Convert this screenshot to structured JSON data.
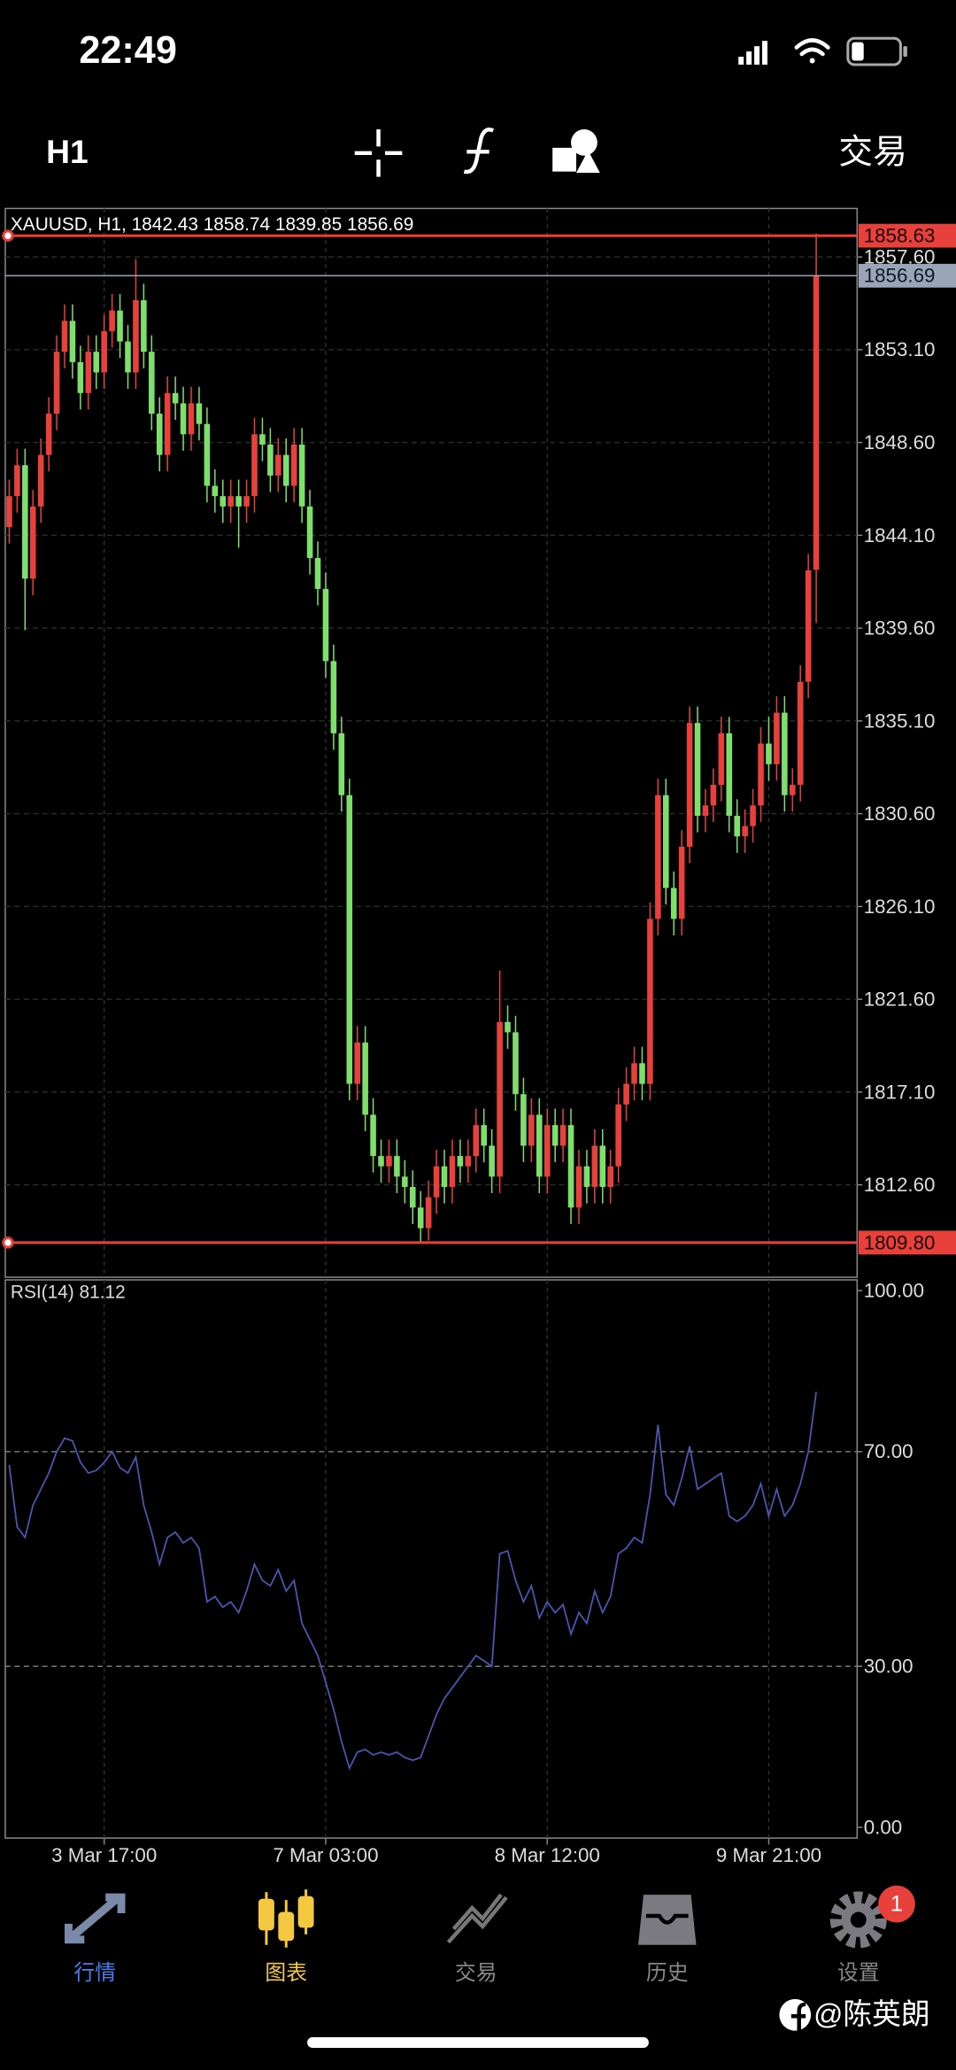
{
  "status_bar": {
    "time": "22:49"
  },
  "toolbar": {
    "timeframe": "H1",
    "trade": "交易"
  },
  "chart_data": [
    {
      "type": "candlestick",
      "title": "XAUUSD, H1, 1842.43 1858.74 1839.85 1856.69",
      "categories": [
        null,
        null,
        null,
        null,
        null,
        null,
        null,
        null,
        null,
        null,
        null,
        null,
        "3 Mar 17:00",
        null,
        null,
        null,
        null,
        null,
        null,
        null,
        null,
        null,
        null,
        null,
        null,
        null,
        null,
        null,
        null,
        null,
        null,
        null,
        null,
        null,
        null,
        null,
        null,
        null,
        null,
        null,
        "7 Mar 03:00",
        null,
        null,
        null,
        null,
        null,
        null,
        null,
        null,
        null,
        null,
        null,
        null,
        null,
        null,
        null,
        null,
        null,
        null,
        null,
        null,
        null,
        null,
        null,
        null,
        null,
        null,
        null,
        "8 Mar 12:00",
        null,
        null,
        null,
        null,
        null,
        null,
        null,
        null,
        null,
        null,
        null,
        null,
        null,
        null,
        null,
        null,
        null,
        null,
        null,
        null,
        null,
        null,
        null,
        null,
        null,
        null,
        null,
        "9 Mar 21:00",
        null,
        null,
        null,
        null,
        null,
        null
      ],
      "open": [
        1844.5,
        1846.0,
        1847.5,
        1842.0,
        1845.5,
        1848.0,
        1850.0,
        1853.0,
        1854.5,
        1852.5,
        1851.0,
        1853.0,
        1852.0,
        1854.0,
        1855.0,
        1853.5,
        1852.0,
        1855.5,
        1853.0,
        1850.0,
        1848.0,
        1851.0,
        1850.5,
        1849.0,
        1850.5,
        1849.5,
        1846.5,
        1846.0,
        1845.5,
        1846.0,
        1845.5,
        1846.0,
        1849.0,
        1848.5,
        1847.0,
        1848.0,
        1846.5,
        1848.5,
        1845.5,
        1843.0,
        1841.5,
        1838.0,
        1834.5,
        1831.5,
        1817.5,
        1819.5,
        1816.0,
        1814.0,
        1813.5,
        1814.0,
        1813.0,
        1812.5,
        1811.5,
        1810.5,
        1812.0,
        1813.5,
        1812.5,
        1814.0,
        1813.5,
        1814.0,
        1815.5,
        1814.5,
        1813.0,
        1820.5,
        1820.0,
        1817.0,
        1814.5,
        1816.0,
        1813.0,
        1815.5,
        1814.5,
        1815.5,
        1811.5,
        1813.5,
        1812.5,
        1814.5,
        1812.5,
        1813.5,
        1816.5,
        1817.5,
        1818.5,
        1817.5,
        1825.5,
        1831.5,
        1827.0,
        1825.5,
        1829.0,
        1835.0,
        1830.5,
        1831.0,
        1832.0,
        1834.5,
        1830.5,
        1829.5,
        1830.0,
        1831.0,
        1834.0,
        1833.0,
        1835.5,
        1831.5,
        1832.0,
        1837.0,
        1842.43
      ],
      "high": [
        1846.8,
        1848.3,
        1848.3,
        1846.3,
        1848.8,
        1850.8,
        1853.8,
        1855.3,
        1855.3,
        1853.3,
        1853.8,
        1853.8,
        1854.8,
        1855.8,
        1855.8,
        1854.3,
        1857.5,
        1856.3,
        1853.8,
        1850.8,
        1851.8,
        1851.8,
        1851.3,
        1851.3,
        1851.3,
        1850.3,
        1847.3,
        1846.8,
        1846.8,
        1846.8,
        1846.8,
        1849.8,
        1849.8,
        1849.3,
        1848.8,
        1848.8,
        1849.3,
        1849.3,
        1846.3,
        1843.8,
        1842.3,
        1838.8,
        1835.3,
        1832.3,
        1820.3,
        1820.3,
        1816.8,
        1814.8,
        1814.8,
        1814.8,
        1813.8,
        1813.3,
        1812.3,
        1812.8,
        1814.3,
        1814.3,
        1814.8,
        1814.8,
        1814.8,
        1816.3,
        1816.3,
        1815.3,
        1823.0,
        1821.3,
        1820.8,
        1817.8,
        1816.8,
        1816.8,
        1816.3,
        1816.3,
        1816.3,
        1816.3,
        1814.3,
        1814.3,
        1815.3,
        1815.3,
        1814.3,
        1817.3,
        1818.3,
        1819.3,
        1819.3,
        1826.3,
        1832.3,
        1832.3,
        1827.8,
        1829.8,
        1835.8,
        1835.8,
        1831.8,
        1832.8,
        1835.3,
        1835.3,
        1831.3,
        1830.8,
        1831.8,
        1834.8,
        1835.3,
        1836.3,
        1836.3,
        1832.8,
        1837.8,
        1843.2,
        1858.74
      ],
      "low": [
        1843.7,
        1845.2,
        1839.5,
        1841.2,
        1844.7,
        1847.2,
        1849.2,
        1852.2,
        1851.7,
        1850.2,
        1850.2,
        1851.2,
        1851.2,
        1853.2,
        1852.7,
        1851.2,
        1851.2,
        1852.2,
        1849.2,
        1847.2,
        1847.2,
        1849.7,
        1848.2,
        1848.2,
        1848.7,
        1845.7,
        1845.2,
        1844.7,
        1844.7,
        1843.5,
        1844.7,
        1845.2,
        1847.7,
        1846.2,
        1846.2,
        1845.7,
        1845.7,
        1844.7,
        1842.2,
        1840.7,
        1837.2,
        1833.7,
        1830.7,
        1816.7,
        1816.7,
        1815.2,
        1813.2,
        1812.7,
        1812.7,
        1812.2,
        1811.7,
        1810.7,
        1809.8,
        1809.9,
        1811.2,
        1811.7,
        1811.7,
        1812.7,
        1812.7,
        1813.2,
        1813.7,
        1812.2,
        1812.2,
        1819.2,
        1816.2,
        1813.7,
        1813.7,
        1812.2,
        1812.2,
        1813.7,
        1813.7,
        1810.7,
        1810.7,
        1811.7,
        1811.7,
        1811.7,
        1811.7,
        1812.7,
        1815.7,
        1816.7,
        1816.7,
        1816.7,
        1824.7,
        1826.2,
        1824.7,
        1824.7,
        1828.2,
        1829.7,
        1829.7,
        1830.2,
        1831.2,
        1829.7,
        1828.7,
        1828.7,
        1829.2,
        1830.2,
        1832.2,
        1832.2,
        1830.7,
        1830.7,
        1831.2,
        1836.2,
        1839.85
      ],
      "close": [
        1846.0,
        1847.5,
        1842.0,
        1845.5,
        1848.0,
        1850.0,
        1853.0,
        1854.5,
        1852.5,
        1851.0,
        1853.0,
        1852.0,
        1854.0,
        1855.0,
        1853.5,
        1852.0,
        1855.5,
        1853.0,
        1850.0,
        1848.0,
        1851.0,
        1850.5,
        1849.0,
        1850.5,
        1849.5,
        1846.5,
        1846.0,
        1845.5,
        1846.0,
        1845.5,
        1846.0,
        1849.0,
        1848.5,
        1847.0,
        1848.0,
        1846.5,
        1848.5,
        1845.5,
        1843.0,
        1841.5,
        1838.0,
        1834.5,
        1831.5,
        1817.5,
        1819.5,
        1816.0,
        1814.0,
        1813.5,
        1814.0,
        1813.0,
        1812.5,
        1811.5,
        1810.5,
        1812.0,
        1813.5,
        1812.5,
        1814.0,
        1813.5,
        1814.0,
        1815.5,
        1814.5,
        1813.0,
        1820.5,
        1820.0,
        1817.0,
        1814.5,
        1816.0,
        1813.0,
        1815.5,
        1814.5,
        1815.5,
        1811.5,
        1813.5,
        1812.5,
        1814.5,
        1812.5,
        1813.5,
        1816.5,
        1817.5,
        1818.5,
        1817.5,
        1825.5,
        1831.5,
        1827.0,
        1825.5,
        1829.0,
        1835.0,
        1830.5,
        1831.0,
        1832.0,
        1834.5,
        1830.5,
        1829.5,
        1830.0,
        1831.0,
        1834.0,
        1833.0,
        1835.5,
        1831.5,
        1832.0,
        1837.0,
        1842.4,
        1856.69
      ],
      "up_color": "#e8413c",
      "down_color": "#7ee06a",
      "ylim": [
        1808.12,
        1859.95
      ],
      "yticks": [
        {
          "value": 1812.6,
          "label": "1812.60"
        },
        {
          "value": 1817.1,
          "label": "1817.10"
        },
        {
          "value": 1821.6,
          "label": "1821.60"
        },
        {
          "value": 1826.1,
          "label": "1826.10"
        },
        {
          "value": 1830.6,
          "label": "1830.60"
        },
        {
          "value": 1835.1,
          "label": "1835.10"
        },
        {
          "value": 1839.6,
          "label": "1839.60"
        },
        {
          "value": 1844.1,
          "label": "1844.10"
        },
        {
          "value": 1848.6,
          "label": "1848.60"
        },
        {
          "value": 1853.1,
          "label": "1853.10"
        },
        {
          "value": 1857.6,
          "label": "1857.60"
        }
      ],
      "hlines": [
        {
          "value": 1858.63,
          "color": "#e8413c"
        },
        {
          "value": 1856.69,
          "color": "#9aa6b8"
        },
        {
          "value": 1809.8,
          "label": "1809.80",
          "color": "#e8413c"
        }
      ],
      "grid": true
    },
    {
      "type": "line",
      "title": "RSI(14) 81.12",
      "values": [
        67.5,
        56,
        54,
        60,
        63,
        66,
        70,
        72.5,
        72,
        68,
        66,
        66.5,
        68,
        70,
        67,
        66,
        69,
        60,
        55,
        49,
        54,
        55,
        53,
        54,
        52,
        42,
        43,
        41,
        42,
        40,
        44,
        49,
        46,
        45,
        48,
        44,
        46,
        38,
        35,
        32,
        27,
        22,
        16,
        11,
        14,
        14.5,
        13.5,
        14,
        13.5,
        14,
        13,
        12.5,
        13,
        17,
        21,
        24,
        26,
        28,
        30,
        32,
        31,
        30,
        51,
        51.5,
        46,
        42,
        45,
        39,
        42,
        40,
        41.5,
        36,
        40,
        38,
        44,
        40,
        43,
        51,
        52,
        54,
        53,
        62,
        75,
        62,
        60,
        65,
        71,
        63,
        64,
        65,
        66,
        58,
        57,
        58,
        60,
        64,
        58,
        63,
        58,
        60,
        64,
        70,
        81.12
      ],
      "color": "#4b56b0",
      "ylim": [
        -2,
        102
      ],
      "yticks": [
        {
          "value": 0,
          "label": "0.00"
        },
        {
          "value": 30,
          "label": "30.00"
        },
        {
          "value": 70,
          "label": "70.00"
        },
        {
          "value": 100,
          "label": "100.00"
        }
      ],
      "grid": true
    }
  ],
  "tab_bar": {
    "tabs": [
      "行情",
      "图表",
      "交易",
      "历史",
      "设置"
    ],
    "badge": 1
  },
  "watermark": "@陈英朗"
}
